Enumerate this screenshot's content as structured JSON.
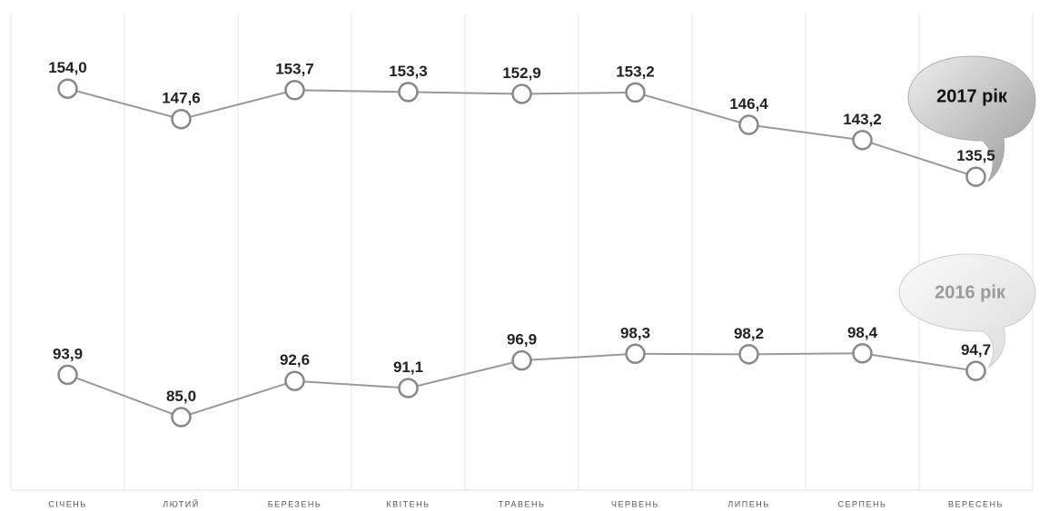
{
  "chart_data": {
    "type": "line",
    "categories": [
      "СІЧЕНЬ",
      "ЛЮТИЙ",
      "БЕРЕЗЕНЬ",
      "КВІТЕНЬ",
      "ТРАВЕНЬ",
      "ЧЕРВЕНЬ",
      "ЛИПЕНЬ",
      "СЕРПЕНЬ",
      "ВЕРЕСЕНЬ"
    ],
    "series": [
      {
        "name": "2017 рік",
        "color": "#999999",
        "values": [
          154.0,
          147.6,
          153.7,
          153.3,
          152.9,
          153.2,
          146.4,
          143.2,
          135.5
        ],
        "value_labels": [
          "154,0",
          "147,6",
          "153,7",
          "153,3",
          "152,9",
          "153,2",
          "146,4",
          "143,2",
          "135,5"
        ]
      },
      {
        "name": "2016 рік",
        "color": "#999999",
        "values": [
          93.9,
          85.0,
          92.6,
          91.1,
          96.9,
          98.3,
          98.2,
          98.4,
          94.7
        ],
        "value_labels": [
          "93,9",
          "85,0",
          "92,6",
          "91,1",
          "96,9",
          "98,3",
          "98,2",
          "98,4",
          "94,7"
        ]
      }
    ],
    "ylim": [
      75,
      165
    ]
  }
}
